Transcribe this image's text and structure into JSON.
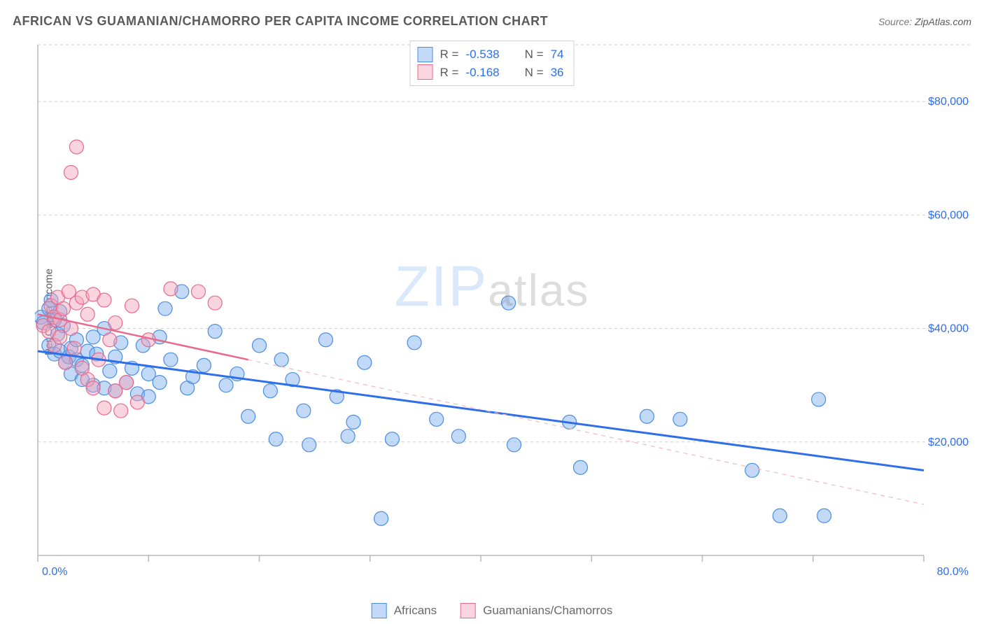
{
  "title": "AFRICAN VS GUAMANIAN/CHAMORRO PER CAPITA INCOME CORRELATION CHART",
  "source_label": "Source:",
  "source_value": "ZipAtlas.com",
  "ylabel": "Per Capita Income",
  "watermark_a": "ZIP",
  "watermark_b": "atlas",
  "chart": {
    "type": "scatter",
    "xlim": [
      0,
      80
    ],
    "ylim": [
      0,
      90000
    ],
    "x_corner_left": "0.0%",
    "x_corner_right": "80.0%",
    "y_ticks": [
      20000,
      40000,
      60000,
      80000
    ],
    "y_tick_labels": [
      "$20,000",
      "$40,000",
      "$60,000",
      "$80,000"
    ],
    "x_tick_positions": [
      0,
      10,
      20,
      30,
      40,
      50,
      60,
      70,
      80
    ],
    "grid_color": "#d0d0d0",
    "background_color": "#ffffff",
    "marker_radius": 10,
    "series": [
      {
        "name": "Africans",
        "color_fill": "rgba(120,172,240,0.45)",
        "color_stroke": "#4a8de0",
        "R": "-0.538",
        "N": "74",
        "trend": {
          "x1": 0,
          "y1": 36000,
          "x2": 80,
          "y2": 15000,
          "color": "#2e6eea"
        },
        "points": [
          [
            0.3,
            42000
          ],
          [
            0.5,
            41000
          ],
          [
            1.0,
            43500
          ],
          [
            1.2,
            45000
          ],
          [
            1.0,
            37000
          ],
          [
            1.5,
            41500
          ],
          [
            1.5,
            35500
          ],
          [
            1.8,
            39000
          ],
          [
            2.0,
            36000
          ],
          [
            2.0,
            43000
          ],
          [
            2.5,
            34000
          ],
          [
            2.3,
            40500
          ],
          [
            2.8,
            35000
          ],
          [
            3.0,
            36500
          ],
          [
            3.0,
            32000
          ],
          [
            3.5,
            38000
          ],
          [
            3.5,
            34500
          ],
          [
            4.0,
            33500
          ],
          [
            4.0,
            31000
          ],
          [
            4.5,
            36000
          ],
          [
            5.0,
            30000
          ],
          [
            5.0,
            38500
          ],
          [
            5.3,
            35500
          ],
          [
            6.0,
            29500
          ],
          [
            6.0,
            40000
          ],
          [
            6.5,
            32500
          ],
          [
            7.0,
            35000
          ],
          [
            7.0,
            29000
          ],
          [
            7.5,
            37500
          ],
          [
            8.0,
            30500
          ],
          [
            8.5,
            33000
          ],
          [
            9.0,
            28500
          ],
          [
            9.5,
            37000
          ],
          [
            10.0,
            32000
          ],
          [
            10.0,
            28000
          ],
          [
            11.0,
            38500
          ],
          [
            11.0,
            30500
          ],
          [
            11.5,
            43500
          ],
          [
            12.0,
            34500
          ],
          [
            13.0,
            46500
          ],
          [
            13.5,
            29500
          ],
          [
            14.0,
            31500
          ],
          [
            15.0,
            33500
          ],
          [
            16.0,
            39500
          ],
          [
            17.0,
            30000
          ],
          [
            18.0,
            32000
          ],
          [
            19.0,
            24500
          ],
          [
            20.0,
            37000
          ],
          [
            21.0,
            29000
          ],
          [
            21.5,
            20500
          ],
          [
            22.0,
            34500
          ],
          [
            23.0,
            31000
          ],
          [
            24.0,
            25500
          ],
          [
            24.5,
            19500
          ],
          [
            26.0,
            38000
          ],
          [
            27.0,
            28000
          ],
          [
            28.0,
            21000
          ],
          [
            28.5,
            23500
          ],
          [
            29.5,
            34000
          ],
          [
            31.0,
            6500
          ],
          [
            32.0,
            20500
          ],
          [
            34.0,
            37500
          ],
          [
            36.0,
            24000
          ],
          [
            38.0,
            21000
          ],
          [
            42.5,
            44500
          ],
          [
            43.0,
            19500
          ],
          [
            48.0,
            23500
          ],
          [
            49.0,
            15500
          ],
          [
            55.0,
            24500
          ],
          [
            58.0,
            24000
          ],
          [
            64.5,
            15000
          ],
          [
            67.0,
            7000
          ],
          [
            70.5,
            27500
          ],
          [
            71.0,
            7000
          ]
        ]
      },
      {
        "name": "Guamanians/Chamorros",
        "color_fill": "rgba(244,160,185,0.45)",
        "color_stroke": "#e86a8a",
        "R": "-0.168",
        "N": "36",
        "trend_solid": {
          "x1": 0,
          "y1": 42500,
          "x2": 19,
          "y2": 34500,
          "color": "#e86a8a"
        },
        "trend_dash": {
          "x1": 19,
          "y1": 34500,
          "x2": 80,
          "y2": 9000,
          "color": "#f4b6c5"
        },
        "points": [
          [
            0.5,
            40500
          ],
          [
            1.0,
            39500
          ],
          [
            1.2,
            44000
          ],
          [
            1.5,
            42000
          ],
          [
            1.5,
            37000
          ],
          [
            1.8,
            45500
          ],
          [
            2.0,
            41500
          ],
          [
            2.0,
            38500
          ],
          [
            2.3,
            43500
          ],
          [
            2.5,
            34000
          ],
          [
            2.8,
            46500
          ],
          [
            3.0,
            67500
          ],
          [
            3.0,
            40000
          ],
          [
            3.3,
            36500
          ],
          [
            3.5,
            72000
          ],
          [
            3.5,
            44500
          ],
          [
            4.0,
            45500
          ],
          [
            4.0,
            33000
          ],
          [
            4.5,
            31000
          ],
          [
            4.5,
            42500
          ],
          [
            5.0,
            46000
          ],
          [
            5.0,
            29500
          ],
          [
            5.5,
            34500
          ],
          [
            6.0,
            45000
          ],
          [
            6.0,
            26000
          ],
          [
            6.5,
            38000
          ],
          [
            7.0,
            29000
          ],
          [
            7.0,
            41000
          ],
          [
            7.5,
            25500
          ],
          [
            8.0,
            30500
          ],
          [
            8.5,
            44000
          ],
          [
            9.0,
            27000
          ],
          [
            10.0,
            38000
          ],
          [
            12.0,
            47000
          ],
          [
            14.5,
            46500
          ],
          [
            16.0,
            44500
          ]
        ]
      }
    ]
  },
  "legend_top": [
    {
      "swatch": "sw-blue",
      "R": "-0.538",
      "N": "74"
    },
    {
      "swatch": "sw-pink",
      "R": "-0.168",
      "N": "36"
    }
  ],
  "legend_bottom": [
    {
      "swatch": "sw-blue",
      "label": "Africans"
    },
    {
      "swatch": "sw-pink",
      "label": "Guamanians/Chamorros"
    }
  ]
}
